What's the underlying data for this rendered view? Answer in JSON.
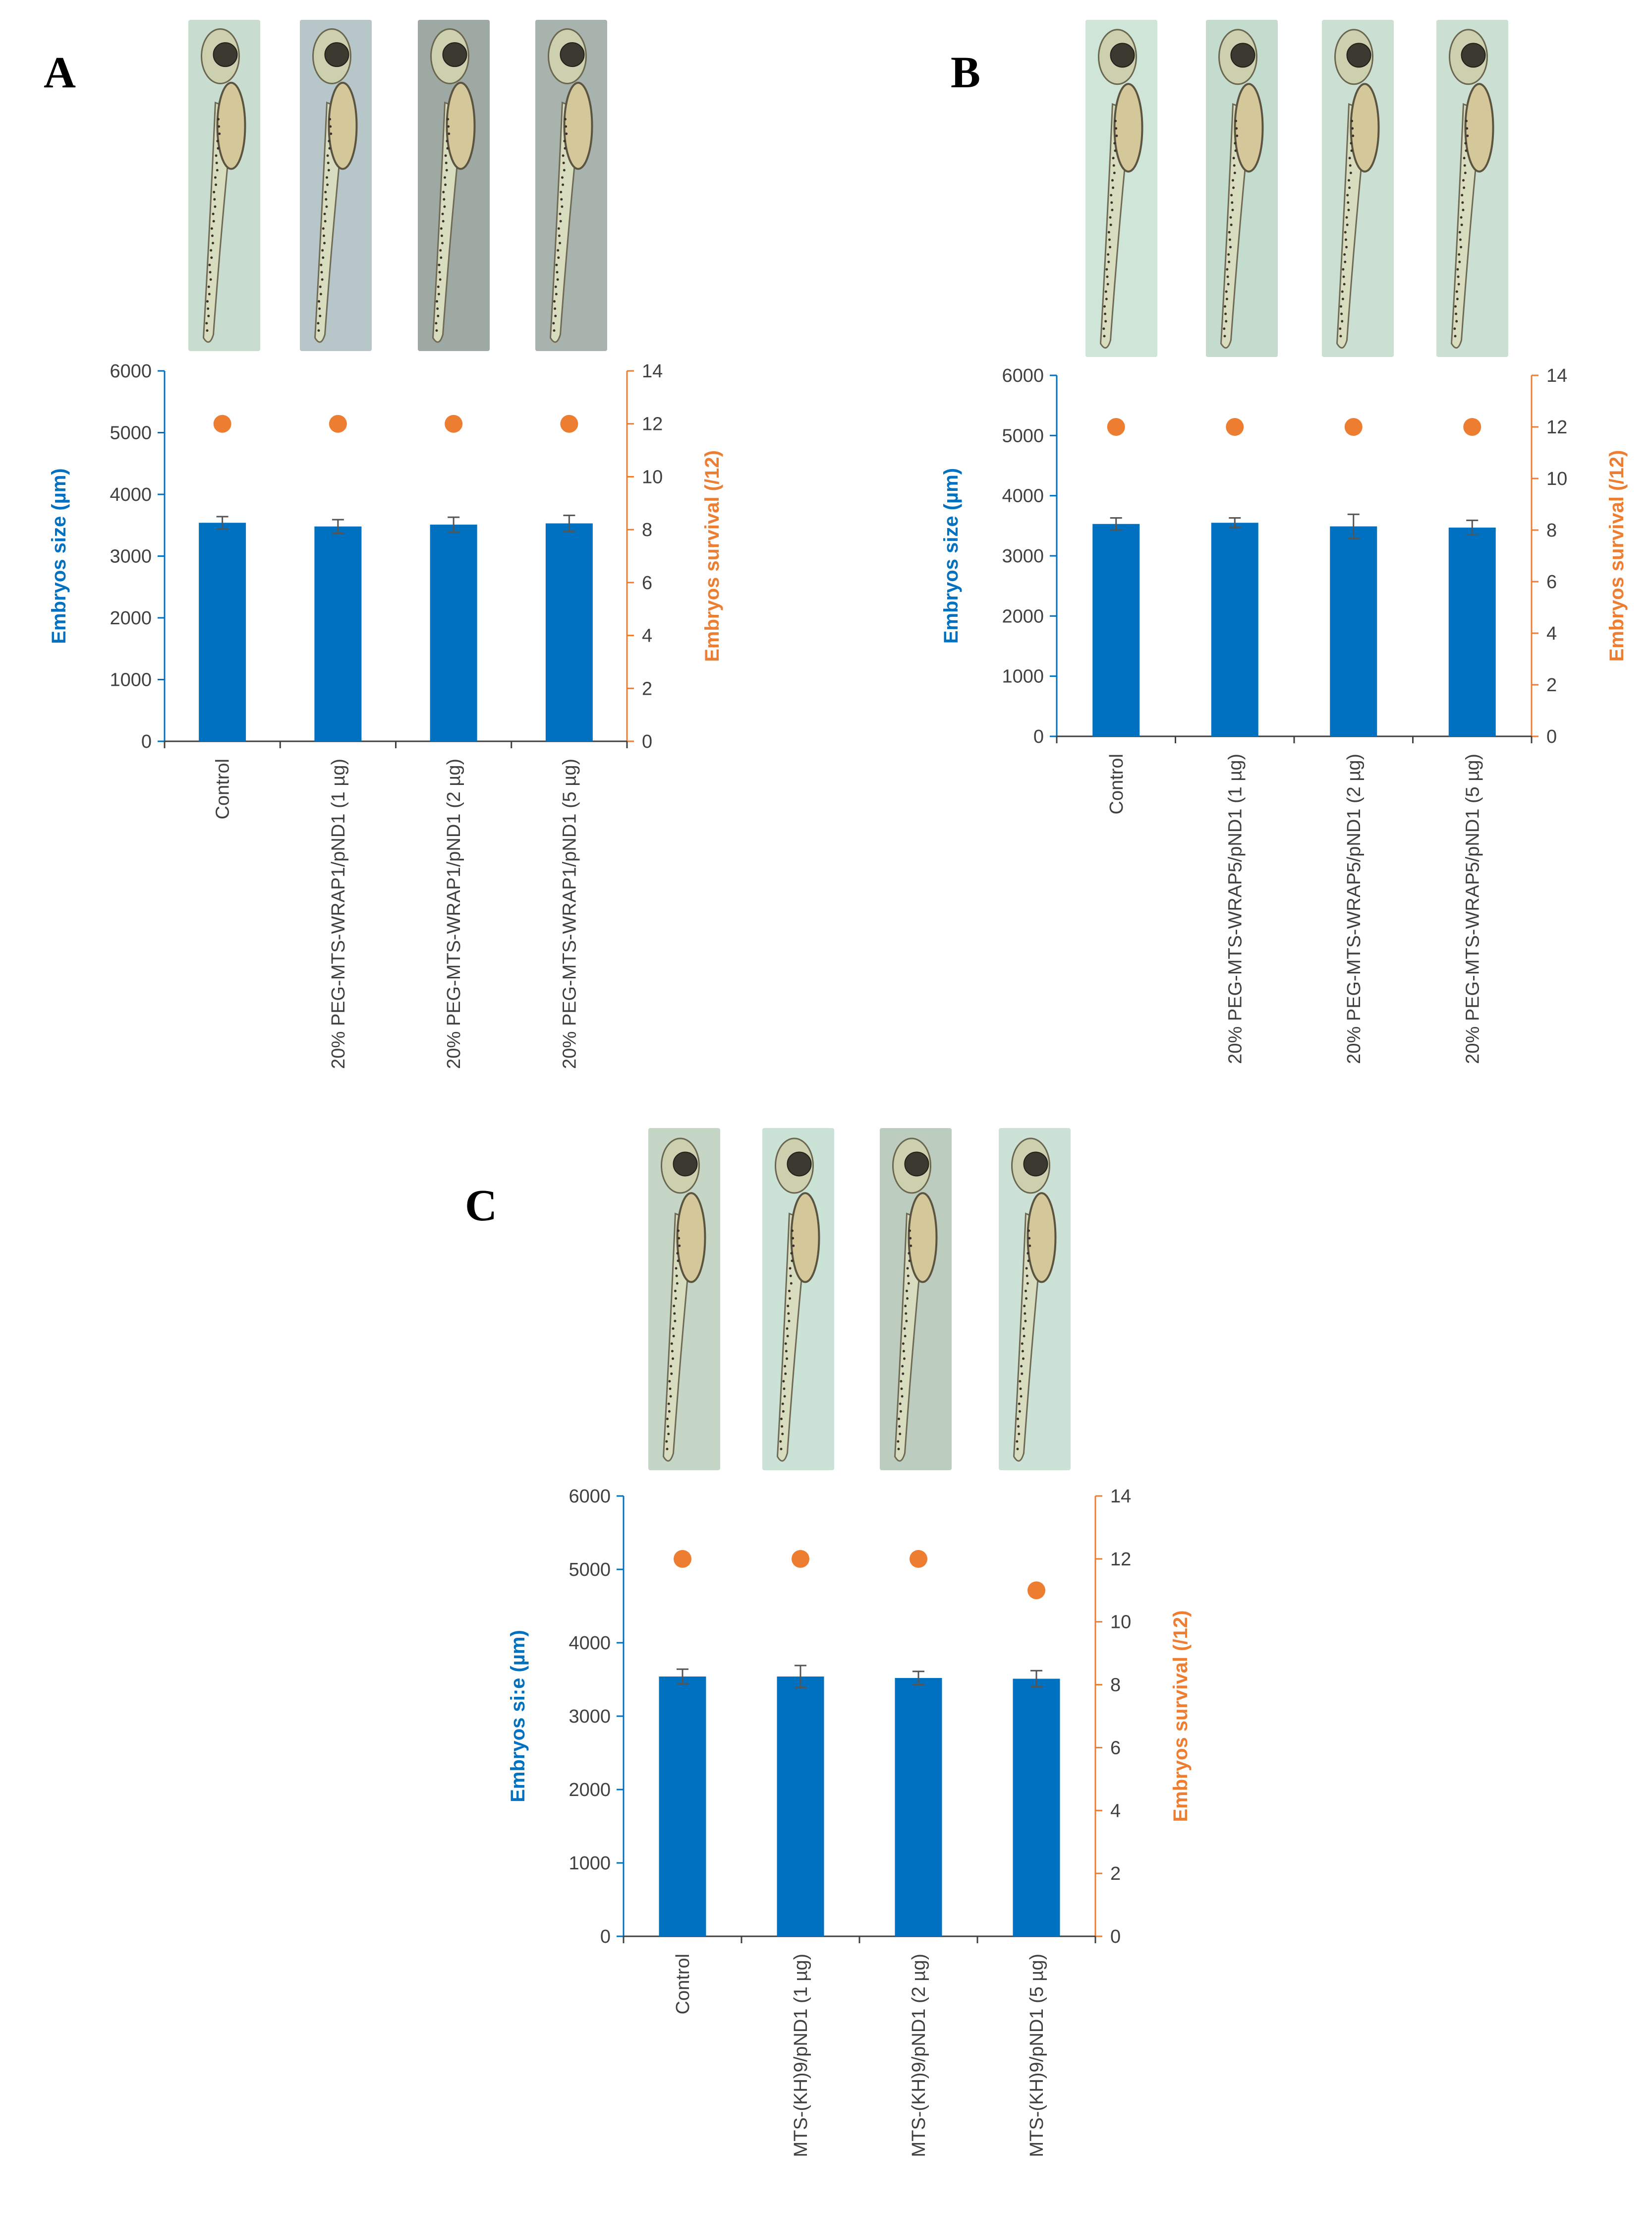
{
  "panels": [
    {
      "letter": "A",
      "chart_data": {
        "type": "bar",
        "categories": [
          "Control",
          "20% PEG-MTS-WRAP1/pND1 (1 µg)",
          "20% PEG-MTS-WRAP1/pND1 (2 µg)",
          "20% PEG-MTS-WRAP1/pND1 (5 µg)"
        ],
        "series": [
          {
            "values": [
              3540,
              3480,
              3510,
              3530
            ],
            "error": [
              100,
              110,
              120,
              130
            ],
            "axis": "left",
            "kind": "bar",
            "color": "#0070C0"
          },
          {
            "values": [
              12,
              12,
              12,
              12
            ],
            "axis": "right",
            "kind": "scatter",
            "color": "#ED7D31"
          }
        ],
        "ylabel": "Embryos size (µm)",
        "y2label": "Embryos survival (/12)",
        "ylim": [
          0,
          6000
        ],
        "y2lim": [
          0,
          14
        ],
        "yticks": [
          "0",
          "1000",
          "2000",
          "3000",
          "4000",
          "5000",
          "6000"
        ],
        "y2ticks": [
          "0",
          "2",
          "4",
          "6",
          "8",
          "10",
          "12",
          "14"
        ],
        "grid": false
      },
      "embryo_images": [
        "embryo",
        "embryo",
        "embryo",
        "embryo"
      ]
    },
    {
      "letter": "B",
      "chart_data": {
        "type": "bar",
        "categories": [
          "Control",
          "20% PEG-MTS-WRAP5/pND1 (1 µg)",
          "20% PEG-MTS-WRAP5/pND1 (2 µg)",
          "20% PEG-MTS-WRAP5/pND1 (5 µg)"
        ],
        "series": [
          {
            "values": [
              3530,
              3550,
              3490,
              3470
            ],
            "error": [
              100,
              80,
              200,
              120
            ],
            "axis": "left",
            "kind": "bar",
            "color": "#0070C0"
          },
          {
            "values": [
              12,
              12,
              12,
              12
            ],
            "axis": "right",
            "kind": "scatter",
            "color": "#ED7D31"
          }
        ],
        "ylabel": "Embryos size (µm)",
        "y2label": "Embryos survival (/12)",
        "ylim": [
          0,
          6000
        ],
        "y2lim": [
          0,
          14
        ],
        "yticks": [
          "0",
          "1000",
          "2000",
          "3000",
          "4000",
          "5000",
          "6000"
        ],
        "y2ticks": [
          "0",
          "2",
          "4",
          "6",
          "8",
          "10",
          "12",
          "14"
        ],
        "grid": false
      },
      "embryo_images": [
        "embryo",
        "embryo",
        "embryo",
        "embryo"
      ]
    },
    {
      "letter": "C",
      "chart_data": {
        "type": "bar",
        "categories": [
          "Control",
          "MTS-(KH)9/pND1 (1 µg)",
          "MTS-(KH)9/pND1 (2 µg)",
          "MTS-(KH)9/pND1 (5 µg)"
        ],
        "series": [
          {
            "values": [
              3540,
              3540,
              3520,
              3510
            ],
            "error": [
              100,
              150,
              90,
              110
            ],
            "axis": "left",
            "kind": "bar",
            "color": "#0070C0"
          },
          {
            "values": [
              12,
              12,
              12,
              11
            ],
            "axis": "right",
            "kind": "scatter",
            "color": "#ED7D31"
          }
        ],
        "ylabel": "Embryos si:e (µm)",
        "y2label": "Embryos survival (/12)",
        "ylim": [
          0,
          6000
        ],
        "y2lim": [
          0,
          14
        ],
        "yticks": [
          "0",
          "1000",
          "2000",
          "3000",
          "4000",
          "5000",
          "6000"
        ],
        "y2ticks": [
          "0",
          "2",
          "4",
          "6",
          "8",
          "10",
          "12",
          "14"
        ],
        "grid": false
      },
      "embryo_images": [
        "embryo",
        "embryo",
        "embryo",
        "embryo"
      ]
    }
  ]
}
